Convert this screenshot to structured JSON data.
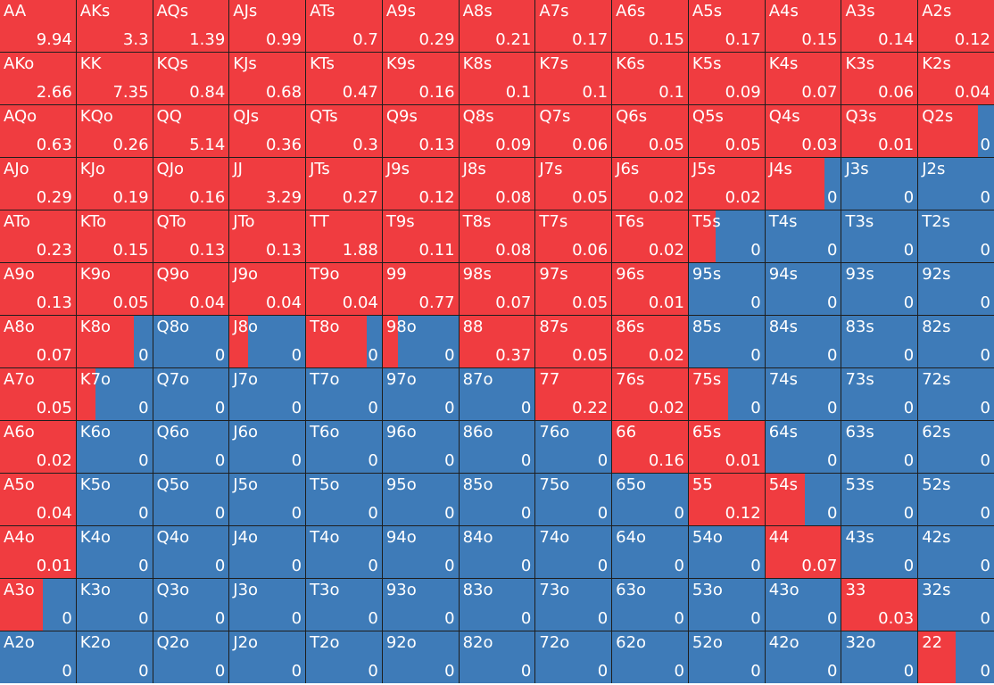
{
  "colors": {
    "raise": "#f03c40",
    "fold": "#3e7bb8",
    "grid_line": "#1e1e1e",
    "text": "#ffffff"
  },
  "grid": {
    "rows": [
      [
        {
          "hand": "AA",
          "value": "9.94",
          "fill": 1
        },
        {
          "hand": "AKs",
          "value": "3.3",
          "fill": 1
        },
        {
          "hand": "AQs",
          "value": "1.39",
          "fill": 1
        },
        {
          "hand": "AJs",
          "value": "0.99",
          "fill": 1
        },
        {
          "hand": "ATs",
          "value": "0.7",
          "fill": 1
        },
        {
          "hand": "A9s",
          "value": "0.29",
          "fill": 1
        },
        {
          "hand": "A8s",
          "value": "0.21",
          "fill": 1
        },
        {
          "hand": "A7s",
          "value": "0.17",
          "fill": 1
        },
        {
          "hand": "A6s",
          "value": "0.15",
          "fill": 1
        },
        {
          "hand": "A5s",
          "value": "0.17",
          "fill": 1
        },
        {
          "hand": "A4s",
          "value": "0.15",
          "fill": 1
        },
        {
          "hand": "A3s",
          "value": "0.14",
          "fill": 1
        },
        {
          "hand": "A2s",
          "value": "0.12",
          "fill": 1
        }
      ],
      [
        {
          "hand": "AKo",
          "value": "2.66",
          "fill": 1
        },
        {
          "hand": "KK",
          "value": "7.35",
          "fill": 1
        },
        {
          "hand": "KQs",
          "value": "0.84",
          "fill": 1
        },
        {
          "hand": "KJs",
          "value": "0.68",
          "fill": 1
        },
        {
          "hand": "KTs",
          "value": "0.47",
          "fill": 1
        },
        {
          "hand": "K9s",
          "value": "0.16",
          "fill": 1
        },
        {
          "hand": "K8s",
          "value": "0.1",
          "fill": 1
        },
        {
          "hand": "K7s",
          "value": "0.1",
          "fill": 1
        },
        {
          "hand": "K6s",
          "value": "0.1",
          "fill": 1
        },
        {
          "hand": "K5s",
          "value": "0.09",
          "fill": 1
        },
        {
          "hand": "K4s",
          "value": "0.07",
          "fill": 1
        },
        {
          "hand": "K3s",
          "value": "0.06",
          "fill": 1
        },
        {
          "hand": "K2s",
          "value": "0.04",
          "fill": 1
        }
      ],
      [
        {
          "hand": "AQo",
          "value": "0.63",
          "fill": 1
        },
        {
          "hand": "KQo",
          "value": "0.26",
          "fill": 1
        },
        {
          "hand": "QQ",
          "value": "5.14",
          "fill": 1
        },
        {
          "hand": "QJs",
          "value": "0.36",
          "fill": 1
        },
        {
          "hand": "QTs",
          "value": "0.3",
          "fill": 1
        },
        {
          "hand": "Q9s",
          "value": "0.13",
          "fill": 1
        },
        {
          "hand": "Q8s",
          "value": "0.09",
          "fill": 1
        },
        {
          "hand": "Q7s",
          "value": "0.06",
          "fill": 1
        },
        {
          "hand": "Q6s",
          "value": "0.05",
          "fill": 1
        },
        {
          "hand": "Q5s",
          "value": "0.05",
          "fill": 1
        },
        {
          "hand": "Q4s",
          "value": "0.03",
          "fill": 1
        },
        {
          "hand": "Q3s",
          "value": "0.01",
          "fill": 1
        },
        {
          "hand": "Q2s",
          "value": "0",
          "fill": 0.79
        }
      ],
      [
        {
          "hand": "AJo",
          "value": "0.29",
          "fill": 1
        },
        {
          "hand": "KJo",
          "value": "0.19",
          "fill": 1
        },
        {
          "hand": "QJo",
          "value": "0.16",
          "fill": 1
        },
        {
          "hand": "JJ",
          "value": "3.29",
          "fill": 1
        },
        {
          "hand": "JTs",
          "value": "0.27",
          "fill": 1
        },
        {
          "hand": "J9s",
          "value": "0.12",
          "fill": 1
        },
        {
          "hand": "J8s",
          "value": "0.08",
          "fill": 1
        },
        {
          "hand": "J7s",
          "value": "0.05",
          "fill": 1
        },
        {
          "hand": "J6s",
          "value": "0.02",
          "fill": 1
        },
        {
          "hand": "J5s",
          "value": "0.02",
          "fill": 1
        },
        {
          "hand": "J4s",
          "value": "0",
          "fill": 0.78
        },
        {
          "hand": "J3s",
          "value": "0",
          "fill": 0
        },
        {
          "hand": "J2s",
          "value": "0",
          "fill": 0
        }
      ],
      [
        {
          "hand": "ATo",
          "value": "0.23",
          "fill": 1
        },
        {
          "hand": "KTo",
          "value": "0.15",
          "fill": 1
        },
        {
          "hand": "QTo",
          "value": "0.13",
          "fill": 1
        },
        {
          "hand": "JTo",
          "value": "0.13",
          "fill": 1
        },
        {
          "hand": "TT",
          "value": "1.88",
          "fill": 1
        },
        {
          "hand": "T9s",
          "value": "0.11",
          "fill": 1
        },
        {
          "hand": "T8s",
          "value": "0.08",
          "fill": 1
        },
        {
          "hand": "T7s",
          "value": "0.06",
          "fill": 1
        },
        {
          "hand": "T6s",
          "value": "0.02",
          "fill": 1
        },
        {
          "hand": "T5s",
          "value": "0",
          "fill": 0.35
        },
        {
          "hand": "T4s",
          "value": "0",
          "fill": 0
        },
        {
          "hand": "T3s",
          "value": "0",
          "fill": 0
        },
        {
          "hand": "T2s",
          "value": "0",
          "fill": 0
        }
      ],
      [
        {
          "hand": "A9o",
          "value": "0.13",
          "fill": 1
        },
        {
          "hand": "K9o",
          "value": "0.05",
          "fill": 1
        },
        {
          "hand": "Q9o",
          "value": "0.04",
          "fill": 1
        },
        {
          "hand": "J9o",
          "value": "0.04",
          "fill": 1
        },
        {
          "hand": "T9o",
          "value": "0.04",
          "fill": 1
        },
        {
          "hand": "99",
          "value": "0.77",
          "fill": 1
        },
        {
          "hand": "98s",
          "value": "0.07",
          "fill": 1
        },
        {
          "hand": "97s",
          "value": "0.05",
          "fill": 1
        },
        {
          "hand": "96s",
          "value": "0.01",
          "fill": 1
        },
        {
          "hand": "95s",
          "value": "0",
          "fill": 0
        },
        {
          "hand": "94s",
          "value": "0",
          "fill": 0
        },
        {
          "hand": "93s",
          "value": "0",
          "fill": 0
        },
        {
          "hand": "92s",
          "value": "0",
          "fill": 0
        }
      ],
      [
        {
          "hand": "A8o",
          "value": "0.07",
          "fill": 1
        },
        {
          "hand": "K8o",
          "value": "0",
          "fill": 0.76
        },
        {
          "hand": "Q8o",
          "value": "0",
          "fill": 0
        },
        {
          "hand": "J8o",
          "value": "0",
          "fill": 0.25
        },
        {
          "hand": "T8o",
          "value": "0",
          "fill": 0.8
        },
        {
          "hand": "98o",
          "value": "0",
          "fill": 0.2
        },
        {
          "hand": "88",
          "value": "0.37",
          "fill": 1
        },
        {
          "hand": "87s",
          "value": "0.05",
          "fill": 1
        },
        {
          "hand": "86s",
          "value": "0.02",
          "fill": 1
        },
        {
          "hand": "85s",
          "value": "0",
          "fill": 0
        },
        {
          "hand": "84s",
          "value": "0",
          "fill": 0
        },
        {
          "hand": "83s",
          "value": "0",
          "fill": 0
        },
        {
          "hand": "82s",
          "value": "0",
          "fill": 0
        }
      ],
      [
        {
          "hand": "A7o",
          "value": "0.05",
          "fill": 1
        },
        {
          "hand": "K7o",
          "value": "0",
          "fill": 0.25
        },
        {
          "hand": "Q7o",
          "value": "0",
          "fill": 0
        },
        {
          "hand": "J7o",
          "value": "0",
          "fill": 0
        },
        {
          "hand": "T7o",
          "value": "0",
          "fill": 0
        },
        {
          "hand": "97o",
          "value": "0",
          "fill": 0
        },
        {
          "hand": "87o",
          "value": "0",
          "fill": 0
        },
        {
          "hand": "77",
          "value": "0.22",
          "fill": 1
        },
        {
          "hand": "76s",
          "value": "0.02",
          "fill": 1
        },
        {
          "hand": "75s",
          "value": "0",
          "fill": 0.52
        },
        {
          "hand": "74s",
          "value": "0",
          "fill": 0
        },
        {
          "hand": "73s",
          "value": "0",
          "fill": 0
        },
        {
          "hand": "72s",
          "value": "0",
          "fill": 0
        }
      ],
      [
        {
          "hand": "A6o",
          "value": "0.02",
          "fill": 1
        },
        {
          "hand": "K6o",
          "value": "0",
          "fill": 0
        },
        {
          "hand": "Q6o",
          "value": "0",
          "fill": 0
        },
        {
          "hand": "J6o",
          "value": "0",
          "fill": 0
        },
        {
          "hand": "T6o",
          "value": "0",
          "fill": 0
        },
        {
          "hand": "96o",
          "value": "0",
          "fill": 0
        },
        {
          "hand": "86o",
          "value": "0",
          "fill": 0
        },
        {
          "hand": "76o",
          "value": "0",
          "fill": 0
        },
        {
          "hand": "66",
          "value": "0.16",
          "fill": 1
        },
        {
          "hand": "65s",
          "value": "0.01",
          "fill": 1
        },
        {
          "hand": "64s",
          "value": "0",
          "fill": 0
        },
        {
          "hand": "63s",
          "value": "0",
          "fill": 0
        },
        {
          "hand": "62s",
          "value": "0",
          "fill": 0
        }
      ],
      [
        {
          "hand": "A5o",
          "value": "0.04",
          "fill": 1
        },
        {
          "hand": "K5o",
          "value": "0",
          "fill": 0
        },
        {
          "hand": "Q5o",
          "value": "0",
          "fill": 0
        },
        {
          "hand": "J5o",
          "value": "0",
          "fill": 0
        },
        {
          "hand": "T5o",
          "value": "0",
          "fill": 0
        },
        {
          "hand": "95o",
          "value": "0",
          "fill": 0
        },
        {
          "hand": "85o",
          "value": "0",
          "fill": 0
        },
        {
          "hand": "75o",
          "value": "0",
          "fill": 0
        },
        {
          "hand": "65o",
          "value": "0",
          "fill": 0
        },
        {
          "hand": "55",
          "value": "0.12",
          "fill": 1
        },
        {
          "hand": "54s",
          "value": "0",
          "fill": 0.52
        },
        {
          "hand": "53s",
          "value": "0",
          "fill": 0
        },
        {
          "hand": "52s",
          "value": "0",
          "fill": 0
        }
      ],
      [
        {
          "hand": "A4o",
          "value": "0.01",
          "fill": 1
        },
        {
          "hand": "K4o",
          "value": "0",
          "fill": 0
        },
        {
          "hand": "Q4o",
          "value": "0",
          "fill": 0
        },
        {
          "hand": "J4o",
          "value": "0",
          "fill": 0
        },
        {
          "hand": "T4o",
          "value": "0",
          "fill": 0
        },
        {
          "hand": "94o",
          "value": "0",
          "fill": 0
        },
        {
          "hand": "84o",
          "value": "0",
          "fill": 0
        },
        {
          "hand": "74o",
          "value": "0",
          "fill": 0
        },
        {
          "hand": "64o",
          "value": "0",
          "fill": 0
        },
        {
          "hand": "54o",
          "value": "0",
          "fill": 0
        },
        {
          "hand": "44",
          "value": "0.07",
          "fill": 1
        },
        {
          "hand": "43s",
          "value": "0",
          "fill": 0
        },
        {
          "hand": "42s",
          "value": "0",
          "fill": 0
        }
      ],
      [
        {
          "hand": "A3o",
          "value": "0",
          "fill": 0.57
        },
        {
          "hand": "K3o",
          "value": "0",
          "fill": 0
        },
        {
          "hand": "Q3o",
          "value": "0",
          "fill": 0
        },
        {
          "hand": "J3o",
          "value": "0",
          "fill": 0
        },
        {
          "hand": "T3o",
          "value": "0",
          "fill": 0
        },
        {
          "hand": "93o",
          "value": "0",
          "fill": 0
        },
        {
          "hand": "83o",
          "value": "0",
          "fill": 0
        },
        {
          "hand": "73o",
          "value": "0",
          "fill": 0
        },
        {
          "hand": "63o",
          "value": "0",
          "fill": 0
        },
        {
          "hand": "53o",
          "value": "0",
          "fill": 0
        },
        {
          "hand": "43o",
          "value": "0",
          "fill": 0
        },
        {
          "hand": "33",
          "value": "0.03",
          "fill": 1
        },
        {
          "hand": "32s",
          "value": "0",
          "fill": 0
        }
      ],
      [
        {
          "hand": "A2o",
          "value": "0",
          "fill": 0
        },
        {
          "hand": "K2o",
          "value": "0",
          "fill": 0
        },
        {
          "hand": "Q2o",
          "value": "0",
          "fill": 0
        },
        {
          "hand": "J2o",
          "value": "0",
          "fill": 0
        },
        {
          "hand": "T2o",
          "value": "0",
          "fill": 0
        },
        {
          "hand": "92o",
          "value": "0",
          "fill": 0
        },
        {
          "hand": "82o",
          "value": "0",
          "fill": 0
        },
        {
          "hand": "72o",
          "value": "0",
          "fill": 0
        },
        {
          "hand": "62o",
          "value": "0",
          "fill": 0
        },
        {
          "hand": "52o",
          "value": "0",
          "fill": 0
        },
        {
          "hand": "42o",
          "value": "0",
          "fill": 0
        },
        {
          "hand": "32o",
          "value": "0",
          "fill": 0
        },
        {
          "hand": "22",
          "value": "0",
          "fill": 0.49
        }
      ]
    ]
  }
}
